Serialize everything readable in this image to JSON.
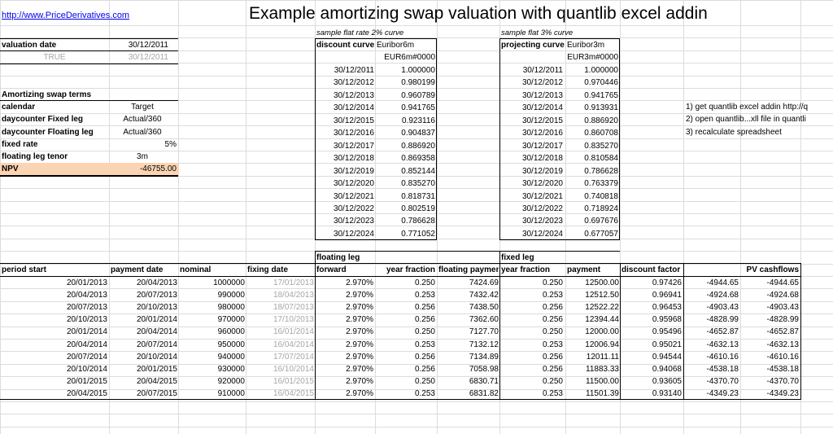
{
  "sheet": {
    "link": "http://www.PriceDerivatives.com",
    "title": "Example amortizing swap valuation with quantlib excel addin"
  },
  "valuation": {
    "label": "valuation date",
    "value": "30/12/2011",
    "true_label": "TRUE",
    "true_value": "30/12/2011"
  },
  "terms": {
    "header": "Amortizing swap terms",
    "rows": [
      {
        "label": "calendar",
        "value": "Target"
      },
      {
        "label": "daycounter Fixed leg",
        "value": "Actual/360"
      },
      {
        "label": "daycounter Floating leg",
        "value": "Actual/360"
      },
      {
        "label": "fixed rate",
        "value": "5%"
      },
      {
        "label": "floating leg tenor",
        "value": "3m"
      }
    ],
    "npv_label": "NPV",
    "npv_value": "-46755.00"
  },
  "discount": {
    "caption": "sample flat rate 2% curve",
    "label": "discount curve",
    "index": "Euribor6m",
    "handle": "EUR6m#0000",
    "dates": [
      "30/12/2011",
      "30/12/2012",
      "30/12/2013",
      "30/12/2014",
      "30/12/2015",
      "30/12/2016",
      "30/12/2017",
      "30/12/2018",
      "30/12/2019",
      "30/12/2020",
      "30/12/2021",
      "30/12/2022",
      "30/12/2023",
      "30/12/2024"
    ],
    "factors": [
      "1.000000",
      "0.980199",
      "0.960789",
      "0.941765",
      "0.923116",
      "0.904837",
      "0.886920",
      "0.869358",
      "0.852144",
      "0.835270",
      "0.818731",
      "0.802519",
      "0.786628",
      "0.771052"
    ]
  },
  "projecting": {
    "caption": "sample flat 3% curve",
    "label": "projecting curve",
    "index": "Euribor3m",
    "handle": "EUR3m#0000",
    "dates": [
      "30/12/2011",
      "30/12/2012",
      "30/12/2013",
      "30/12/2014",
      "30/12/2015",
      "30/12/2016",
      "30/12/2017",
      "30/12/2018",
      "30/12/2019",
      "30/12/2020",
      "30/12/2021",
      "30/12/2022",
      "30/12/2023",
      "30/12/2024"
    ],
    "factors": [
      "1.000000",
      "0.970446",
      "0.941765",
      "0.913931",
      "0.886920",
      "0.860708",
      "0.835270",
      "0.810584",
      "0.786628",
      "0.763379",
      "0.740818",
      "0.718924",
      "0.697676",
      "0.677057"
    ]
  },
  "instructions": [
    "1) get quantlib excel addin http://q",
    "2) open quantlib...xll file in quantli",
    "3) recalculate spreadsheet"
  ],
  "schedule": {
    "floating_leg_label": "floating leg",
    "fixed_leg_label": "fixed leg",
    "headers": [
      "period start",
      "payment date",
      "nominal",
      "fixing date",
      "forward",
      "year fraction",
      "floating payment",
      "year fraction",
      "payment",
      "discount factor",
      "",
      "PV cashflows"
    ],
    "rows": [
      [
        "20/01/2013",
        "20/04/2013",
        "1000000",
        "17/01/2013",
        "2.970%",
        "0.250",
        "7424.69",
        "0.250",
        "12500.00",
        "0.97426",
        "-4944.65",
        "-4944.65"
      ],
      [
        "20/04/2013",
        "20/07/2013",
        "990000",
        "18/04/2013",
        "2.970%",
        "0.253",
        "7432.42",
        "0.253",
        "12512.50",
        "0.96941",
        "-4924.68",
        "-4924.68"
      ],
      [
        "20/07/2013",
        "20/10/2013",
        "980000",
        "18/07/2013",
        "2.970%",
        "0.256",
        "7438.50",
        "0.256",
        "12522.22",
        "0.96453",
        "-4903.43",
        "-4903.43"
      ],
      [
        "20/10/2013",
        "20/01/2014",
        "970000",
        "17/10/2013",
        "2.970%",
        "0.256",
        "7362.60",
        "0.256",
        "12394.44",
        "0.95968",
        "-4828.99",
        "-4828.99"
      ],
      [
        "20/01/2014",
        "20/04/2014",
        "960000",
        "16/01/2014",
        "2.970%",
        "0.250",
        "7127.70",
        "0.250",
        "12000.00",
        "0.95496",
        "-4652.87",
        "-4652.87"
      ],
      [
        "20/04/2014",
        "20/07/2014",
        "950000",
        "16/04/2014",
        "2.970%",
        "0.253",
        "7132.12",
        "0.253",
        "12006.94",
        "0.95021",
        "-4632.13",
        "-4632.13"
      ],
      [
        "20/07/2014",
        "20/10/2014",
        "940000",
        "17/07/2014",
        "2.970%",
        "0.256",
        "7134.89",
        "0.256",
        "12011.11",
        "0.94544",
        "-4610.16",
        "-4610.16"
      ],
      [
        "20/10/2014",
        "20/01/2015",
        "930000",
        "16/10/2014",
        "2.970%",
        "0.256",
        "7058.98",
        "0.256",
        "11883.33",
        "0.94068",
        "-4538.18",
        "-4538.18"
      ],
      [
        "20/01/2015",
        "20/04/2015",
        "920000",
        "16/01/2015",
        "2.970%",
        "0.250",
        "6830.71",
        "0.250",
        "11500.00",
        "0.93605",
        "-4370.70",
        "-4370.70"
      ],
      [
        "20/04/2015",
        "20/07/2015",
        "910000",
        "16/04/2015",
        "2.970%",
        "0.253",
        "6831.82",
        "0.253",
        "11501.39",
        "0.93140",
        "-4349.23",
        "-4349.23"
      ]
    ]
  }
}
